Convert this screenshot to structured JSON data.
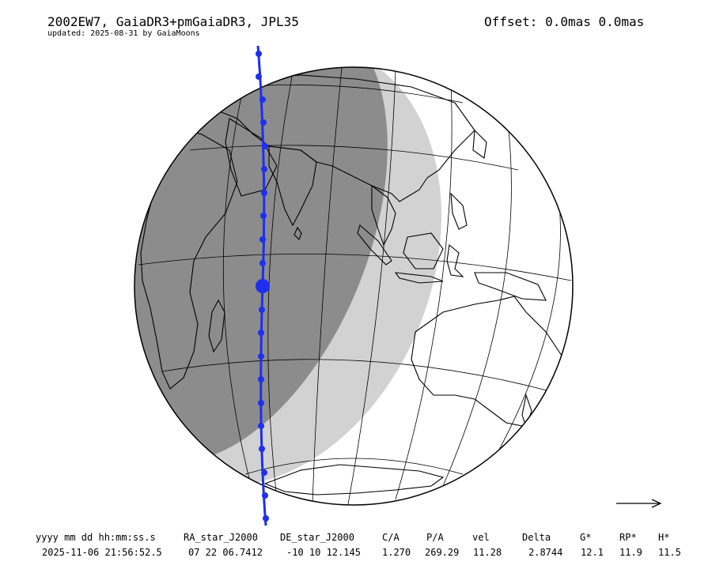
{
  "header": {
    "title": "2002EW7, GaiaDR3+pmGaiaDR3, JPL35",
    "updated": "updated: 2025-08-31 by GaiaMoons",
    "offset": "Offset: 0.0mas 0.0mas"
  },
  "table": {
    "columns": [
      "yyyy mm dd hh:mm:ss.s",
      "RA_star_J2000",
      "DE_star_J2000",
      "C/A",
      "P/A",
      "vel",
      "Delta",
      "G*",
      "RP*",
      "H*"
    ],
    "values": [
      "2025-11-06 21:56:52.5",
      "07 22 06.7412",
      "-10 10 12.145",
      "1.270",
      "269.29",
      "11.28",
      "2.8744",
      "12.1",
      "11.9",
      "11.5"
    ]
  },
  "colors": {
    "night": "#8c8c8c",
    "twilight": "#d2d2d2",
    "day": "#ffffff",
    "track": "#1f2ff0"
  },
  "icons": {
    "direction": "right-arrow-icon"
  }
}
